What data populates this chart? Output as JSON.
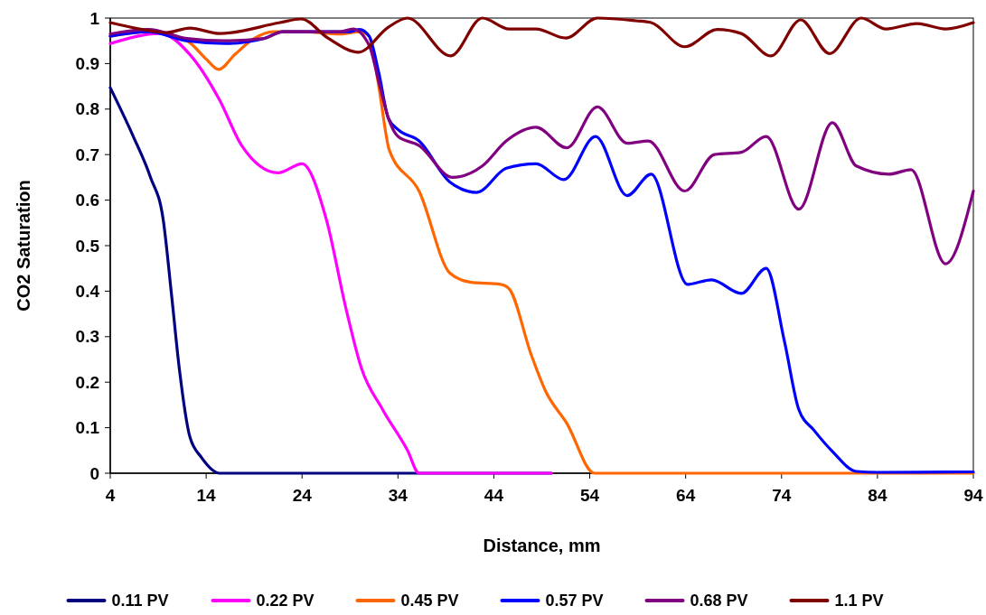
{
  "chart_data": {
    "type": "line",
    "xlabel": "Distance, mm",
    "ylabel": "CO2 Saturation",
    "xlim": [
      4,
      94
    ],
    "xticks": [
      4,
      14,
      24,
      34,
      44,
      54,
      64,
      74,
      84,
      94
    ],
    "ylim": [
      0,
      1
    ],
    "yticks": [
      0,
      {
        "value": 0.1,
        "label": "0.1"
      },
      {
        "value": 0.2,
        "label": "0.2"
      },
      {
        "value": 0.3,
        "label": "0.3"
      },
      {
        "value": 0.4,
        "label": "0.4"
      },
      {
        "value": 0.5,
        "label": "0.5"
      },
      {
        "value": 0.6,
        "label": "0.6"
      },
      {
        "value": 0.7,
        "label": "0.7"
      },
      {
        "value": 0.8,
        "label": "0.8"
      },
      {
        "value": 0.9,
        "label": "0.9"
      },
      1
    ],
    "grid": false,
    "legend": "bottom",
    "marker": "none",
    "line_style": "solid",
    "series": [
      {
        "name": "0.11 PV",
        "color": "#000080",
        "x": [
          4,
          6.4,
          8.2,
          9.5,
          10.4,
          11.2,
          12.3,
          13.5,
          15.4,
          20,
          30,
          40,
          50
        ],
        "values": [
          0.847,
          0.74,
          0.65,
          0.56,
          0.39,
          0.23,
          0.08,
          0.035,
          0,
          0,
          0,
          0,
          0
        ]
      },
      {
        "name": "0.22 PV",
        "color": "#ff00ff",
        "x": [
          4,
          9.2,
          12.3,
          15.4,
          17.7,
          21.5,
          24,
          26.5,
          28.6,
          30.2,
          32.4,
          35,
          36.2,
          40,
          50
        ],
        "values": [
          0.944,
          0.966,
          0.92,
          0.82,
          0.72,
          0.66,
          0.68,
          0.56,
          0.36,
          0.23,
          0.14,
          0.05,
          0,
          0,
          0
        ]
      },
      {
        "name": "0.45 PV",
        "color": "#ff6600",
        "x": [
          4,
          8,
          12,
          14,
          15.3,
          17,
          19,
          21,
          24,
          28,
          30,
          31,
          32,
          33.1,
          36.2,
          39.4,
          41.5,
          44.7,
          45.6,
          47.9,
          49.4,
          51.6,
          54.5,
          60,
          70,
          80,
          94
        ],
        "values": [
          0.96,
          0.97,
          0.95,
          0.91,
          0.887,
          0.92,
          0.955,
          0.97,
          0.97,
          0.965,
          0.97,
          0.96,
          0.85,
          0.71,
          0.62,
          0.44,
          0.42,
          0.415,
          0.405,
          0.26,
          0.18,
          0.11,
          0,
          0,
          0,
          0,
          0
        ]
      },
      {
        "name": "0.57 PV",
        "color": "#0000ff",
        "x": [
          4,
          8,
          12,
          16,
          20,
          22,
          29,
          30,
          31,
          32,
          33,
          34,
          36.2,
          39.4,
          42.2,
          45.3,
          48.4,
          51.3,
          54.6,
          57.9,
          60.4,
          64.2,
          66.7,
          69.8,
          72.4,
          74.3,
          75.8,
          77.4,
          79.3,
          81.8,
          84,
          94
        ],
        "values": [
          0.96,
          0.97,
          0.95,
          0.944,
          0.955,
          0.97,
          0.97,
          0.975,
          0.96,
          0.88,
          0.78,
          0.755,
          0.73,
          0.64,
          0.617,
          0.67,
          0.68,
          0.645,
          0.74,
          0.61,
          0.657,
          0.415,
          0.425,
          0.395,
          0.45,
          0.29,
          0.14,
          0.094,
          0.048,
          0.004,
          0.002,
          0.003
        ]
      },
      {
        "name": "0.68 PV",
        "color": "#800080",
        "x": [
          4,
          8,
          12,
          16,
          20,
          22,
          28,
          29.3,
          31,
          32,
          33,
          34,
          36.2,
          39.7,
          42.8,
          45.3,
          48.4,
          51.6,
          54.8,
          57.9,
          60.1,
          63.9,
          67,
          69.8,
          72.4,
          75.8,
          79.3,
          81.8,
          85.2,
          87.5,
          91.1,
          94
        ],
        "values": [
          0.965,
          0.975,
          0.955,
          0.95,
          0.955,
          0.97,
          0.97,
          0.976,
          0.94,
          0.86,
          0.78,
          0.74,
          0.72,
          0.65,
          0.675,
          0.73,
          0.76,
          0.715,
          0.805,
          0.725,
          0.73,
          0.62,
          0.7,
          0.705,
          0.74,
          0.58,
          0.77,
          0.675,
          0.657,
          0.667,
          0.46,
          0.62
        ]
      },
      {
        "name": "1.1 PV",
        "color": "#800000",
        "x": [
          4,
          7.6,
          9.8,
          12.3,
          15.4,
          21.7,
          23.9,
          26.7,
          29.9,
          33,
          35,
          39.5,
          42.8,
          45.6,
          48.4,
          51.5,
          54.8,
          58.8,
          60.4,
          63.9,
          67.3,
          69.8,
          72.9,
          76,
          79,
          82.3,
          84.9,
          88.1,
          91.1,
          94
        ],
        "values": [
          0.99,
          0.974,
          0.968,
          0.978,
          0.966,
          0.99,
          0.998,
          0.956,
          0.925,
          0.98,
          1,
          0.917,
          1,
          0.976,
          0.976,
          0.956,
          1,
          0.994,
          0.99,
          0.937,
          0.975,
          0.966,
          0.917,
          0.996,
          0.922,
          1,
          0.976,
          0.988,
          0.976,
          0.99
        ]
      }
    ]
  }
}
